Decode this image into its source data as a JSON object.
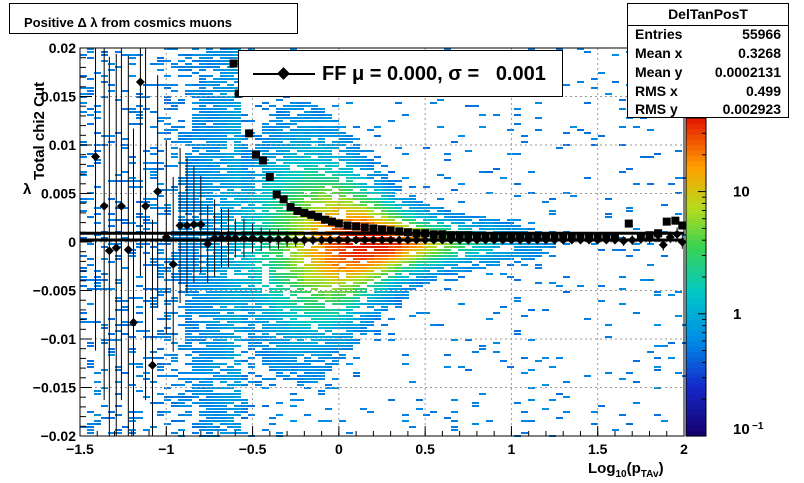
{
  "chart_data": {
    "type": "heatmap",
    "title": "Positive Δ λ from cosmics muons",
    "xlabel": "Log10(pTAv)",
    "ylabel": "Total chi2 Cut",
    "xlim": [
      -1.5,
      2.0
    ],
    "ylim": [
      -0.02,
      0.02
    ],
    "x_ticks": [
      "−1.5",
      "−1",
      "−0.5",
      "0",
      "0.5",
      "1",
      "1.5",
      "2"
    ],
    "y_ticks": [
      "0.02",
      "0.015",
      "0.01",
      "0.005",
      "0",
      "−0.005",
      "−0.01",
      "−0.015",
      "−0.02"
    ],
    "colorbar": {
      "scale": "log",
      "range": [
        0.1,
        40
      ],
      "tick_labels": [
        "10",
        "1",
        "10"
      ],
      "tick_exponent": "−1"
    },
    "grid": true,
    "legend": {
      "label_prefix": "FF μ = ",
      "mu": "0.000",
      "sigma_label": ", σ = ",
      "sigma": "0.001"
    },
    "stats": {
      "name": "DelTanPosT",
      "rows": [
        {
          "key": "Entries",
          "value": "55966"
        },
        {
          "key": "Mean x",
          "value": "0.3268"
        },
        {
          "key": "Mean y",
          "value": "0.0002131"
        },
        {
          "key": "RMS x",
          "value": "0.499"
        },
        {
          "key": "RMS y",
          "value": "0.002923"
        }
      ]
    },
    "profile_diamonds": [
      {
        "x": -1.41,
        "y": 0.0088,
        "err": 0.02
      },
      {
        "x": -1.36,
        "y": 0.0037,
        "err": 0.02
      },
      {
        "x": -1.33,
        "y": -0.0009,
        "err": 0.02
      },
      {
        "x": -1.29,
        "y": -0.0006,
        "err": 0.02
      },
      {
        "x": -1.26,
        "y": 0.0037,
        "err": 0.02
      },
      {
        "x": -1.22,
        "y": -0.0008,
        "err": 0.02
      },
      {
        "x": -1.19,
        "y": -0.0083,
        "err": 0.02
      },
      {
        "x": -1.15,
        "y": 0.0165,
        "err": 0.02
      },
      {
        "x": -1.12,
        "y": 0.0037,
        "err": 0.02
      },
      {
        "x": -1.08,
        "y": -0.0127,
        "err": 0.015
      },
      {
        "x": -1.05,
        "y": 0.0052,
        "err": 0.012
      },
      {
        "x": -1.0,
        "y": 0.0005,
        "err": 0.01
      },
      {
        "x": -0.96,
        "y": -0.0023,
        "err": 0.009
      },
      {
        "x": -0.92,
        "y": 0.0017,
        "err": 0.008
      },
      {
        "x": -0.88,
        "y": 0.0017,
        "err": 0.007
      },
      {
        "x": -0.84,
        "y": 0.0018,
        "err": 0.006
      },
      {
        "x": -0.8,
        "y": 0.0018,
        "err": 0.005
      },
      {
        "x": -0.76,
        "y": -0.0002,
        "err": 0.004
      },
      {
        "x": -0.72,
        "y": 0.0004,
        "err": 0.004
      },
      {
        "x": -0.68,
        "y": 0.0004,
        "err": 0.003
      },
      {
        "x": -0.64,
        "y": 0.0004,
        "err": 0.003
      },
      {
        "x": -0.6,
        "y": 0.0004,
        "err": 0.002
      },
      {
        "x": -0.55,
        "y": 0.0004,
        "err": 0.002
      },
      {
        "x": -0.5,
        "y": 0.0004,
        "err": 0.0015
      },
      {
        "x": -0.45,
        "y": 0.0003,
        "err": 0.0012
      },
      {
        "x": -0.4,
        "y": 0.0003,
        "err": 0.001
      },
      {
        "x": -0.35,
        "y": 0.0003,
        "err": 0.001
      },
      {
        "x": -0.3,
        "y": 0.0003,
        "err": 0.0008
      },
      {
        "x": -0.25,
        "y": 0.0002,
        "err": 0.0007
      },
      {
        "x": -0.2,
        "y": 0.0002,
        "err": 0.0006
      },
      {
        "x": -0.15,
        "y": 0.0002,
        "err": 0.0005
      },
      {
        "x": -0.1,
        "y": 0.0002,
        "err": 0.0005
      },
      {
        "x": -0.05,
        "y": 0.0002,
        "err": 0.0004
      },
      {
        "x": 0.0,
        "y": 0.0002,
        "err": 0.0004
      },
      {
        "x": 0.05,
        "y": 0.0002,
        "err": 0.0004
      },
      {
        "x": 0.1,
        "y": 0.0002,
        "err": 0.0004
      },
      {
        "x": 0.15,
        "y": 0.0002,
        "err": 0.0004
      },
      {
        "x": 0.2,
        "y": 0.0002,
        "err": 0.0004
      },
      {
        "x": 0.25,
        "y": 0.0002,
        "err": 0.0004
      },
      {
        "x": 0.3,
        "y": 0.0002,
        "err": 0.0004
      },
      {
        "x": 0.35,
        "y": 0.0002,
        "err": 0.0004
      },
      {
        "x": 0.4,
        "y": 0.0002,
        "err": 0.0004
      },
      {
        "x": 0.45,
        "y": 0.0002,
        "err": 0.0004
      },
      {
        "x": 0.5,
        "y": 0.0002,
        "err": 0.0004
      },
      {
        "x": 0.55,
        "y": 0.0002,
        "err": 0.0004
      },
      {
        "x": 0.6,
        "y": 0.0002,
        "err": 0.0004
      },
      {
        "x": 0.65,
        "y": 0.0002,
        "err": 0.0004
      },
      {
        "x": 0.7,
        "y": 0.0002,
        "err": 0.0004
      },
      {
        "x": 0.75,
        "y": 0.0002,
        "err": 0.0004
      },
      {
        "x": 0.8,
        "y": 0.0002,
        "err": 0.0004
      },
      {
        "x": 0.85,
        "y": 0.0002,
        "err": 0.0004
      },
      {
        "x": 0.9,
        "y": 0.0002,
        "err": 0.0004
      },
      {
        "x": 0.95,
        "y": 0.0002,
        "err": 0.0004
      },
      {
        "x": 1.0,
        "y": 0.0002,
        "err": 0.0004
      },
      {
        "x": 1.05,
        "y": 0.0002,
        "err": 0.0004
      },
      {
        "x": 1.1,
        "y": 0.0002,
        "err": 0.0004
      },
      {
        "x": 1.15,
        "y": 0.0002,
        "err": 0.0004
      },
      {
        "x": 1.2,
        "y": 0.0002,
        "err": 0.0004
      },
      {
        "x": 1.25,
        "y": 0.0002,
        "err": 0.0004
      },
      {
        "x": 1.3,
        "y": 0.0002,
        "err": 0.0004
      },
      {
        "x": 1.35,
        "y": 0.0002,
        "err": 0.0004
      },
      {
        "x": 1.4,
        "y": 0.0002,
        "err": 0.0004
      },
      {
        "x": 1.45,
        "y": 0.0002,
        "err": 0.0004
      },
      {
        "x": 1.5,
        "y": 0.0002,
        "err": 0.0004
      },
      {
        "x": 1.55,
        "y": 0.0002,
        "err": 0.0004
      },
      {
        "x": 1.6,
        "y": 0.0002,
        "err": 0.0004
      },
      {
        "x": 1.65,
        "y": 0.0001,
        "err": 0.0005
      },
      {
        "x": 1.7,
        "y": 0.0002,
        "err": 0.0005
      },
      {
        "x": 1.75,
        "y": 0.0003,
        "err": 0.0005
      },
      {
        "x": 1.8,
        "y": 0.0004,
        "err": 0.0006
      },
      {
        "x": 1.85,
        "y": 0.0007,
        "err": 0.0006
      },
      {
        "x": 1.88,
        "y": -0.0003,
        "err": 0.0006
      },
      {
        "x": 1.92,
        "y": 0.0005,
        "err": 0.0006
      },
      {
        "x": 1.96,
        "y": 0.0008,
        "err": 0.0007
      },
      {
        "x": 1.99,
        "y": 0.0,
        "err": 0.0007
      }
    ],
    "profile_squares": [
      {
        "x": -0.61,
        "y": 0.0184
      },
      {
        "x": -0.58,
        "y": 0.0153
      },
      {
        "x": -0.52,
        "y": 0.0112
      },
      {
        "x": -0.48,
        "y": 0.009
      },
      {
        "x": -0.44,
        "y": 0.0084
      },
      {
        "x": -0.4,
        "y": 0.0067
      },
      {
        "x": -0.36,
        "y": 0.0049
      },
      {
        "x": -0.32,
        "y": 0.0044
      },
      {
        "x": -0.28,
        "y": 0.0036
      },
      {
        "x": -0.24,
        "y": 0.0032
      },
      {
        "x": -0.2,
        "y": 0.003
      },
      {
        "x": -0.16,
        "y": 0.0028
      },
      {
        "x": -0.12,
        "y": 0.0026
      },
      {
        "x": -0.08,
        "y": 0.0023
      },
      {
        "x": -0.04,
        "y": 0.0021
      },
      {
        "x": 0.0,
        "y": 0.0019
      },
      {
        "x": 0.05,
        "y": 0.0017
      },
      {
        "x": 0.1,
        "y": 0.0016
      },
      {
        "x": 0.15,
        "y": 0.0015
      },
      {
        "x": 0.2,
        "y": 0.0014
      },
      {
        "x": 0.25,
        "y": 0.0013
      },
      {
        "x": 0.3,
        "y": 0.0012
      },
      {
        "x": 0.35,
        "y": 0.0011
      },
      {
        "x": 0.4,
        "y": 0.001
      },
      {
        "x": 0.45,
        "y": 0.0009
      },
      {
        "x": 0.5,
        "y": 0.0009
      },
      {
        "x": 0.55,
        "y": 0.0008
      },
      {
        "x": 0.6,
        "y": 0.0008
      },
      {
        "x": 0.65,
        "y": 0.0007
      },
      {
        "x": 0.7,
        "y": 0.0007
      },
      {
        "x": 0.75,
        "y": 0.0007
      },
      {
        "x": 0.8,
        "y": 0.0006
      },
      {
        "x": 0.85,
        "y": 0.0006
      },
      {
        "x": 0.9,
        "y": 0.0006
      },
      {
        "x": 0.95,
        "y": 0.0006
      },
      {
        "x": 1.0,
        "y": 0.0006
      },
      {
        "x": 1.05,
        "y": 0.0006
      },
      {
        "x": 1.1,
        "y": 0.0005
      },
      {
        "x": 1.15,
        "y": 0.0005
      },
      {
        "x": 1.2,
        "y": 0.0005
      },
      {
        "x": 1.25,
        "y": 0.0005
      },
      {
        "x": 1.3,
        "y": 0.0005
      },
      {
        "x": 1.35,
        "y": 0.0005
      },
      {
        "x": 1.4,
        "y": 0.0005
      },
      {
        "x": 1.45,
        "y": 0.0005
      },
      {
        "x": 1.5,
        "y": 0.0005
      },
      {
        "x": 1.55,
        "y": 0.0005
      },
      {
        "x": 1.6,
        "y": 0.0005
      },
      {
        "x": 1.68,
        "y": 0.0019
      },
      {
        "x": 1.75,
        "y": 0.0005
      },
      {
        "x": 1.8,
        "y": 0.0007
      },
      {
        "x": 1.85,
        "y": 0.0009
      },
      {
        "x": 1.9,
        "y": 0.0021
      },
      {
        "x": 1.95,
        "y": 0.0022
      },
      {
        "x": 1.99,
        "y": 0.0017
      }
    ],
    "fit_lines": [
      {
        "y": 0.0009
      },
      {
        "y": 0.0002
      }
    ]
  }
}
